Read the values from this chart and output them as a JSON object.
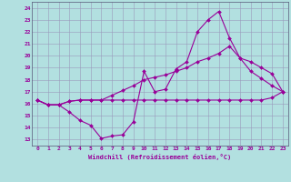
{
  "xlabel": "Windchill (Refroidissement éolien,°C)",
  "background_color": "#b2e0e0",
  "grid_color": "#9999bb",
  "line_color": "#990099",
  "x_ticks": [
    0,
    1,
    2,
    3,
    4,
    5,
    6,
    7,
    8,
    9,
    10,
    11,
    12,
    13,
    14,
    15,
    16,
    17,
    18,
    19,
    20,
    21,
    22,
    23
  ],
  "y_ticks": [
    13,
    14,
    15,
    16,
    17,
    18,
    19,
    20,
    21,
    22,
    23,
    24
  ],
  "ylim": [
    12.5,
    24.5
  ],
  "xlim": [
    -0.5,
    23.5
  ],
  "curve1_x": [
    0,
    1,
    2,
    3,
    4,
    5,
    6,
    7,
    8,
    9,
    10,
    11,
    12,
    13,
    14,
    15,
    16,
    17,
    18,
    19,
    20,
    21,
    22,
    23
  ],
  "curve1_y": [
    16.3,
    15.9,
    15.9,
    15.3,
    14.6,
    14.2,
    13.1,
    13.3,
    13.4,
    14.5,
    18.7,
    17.0,
    17.2,
    18.9,
    19.5,
    22.0,
    23.0,
    23.7,
    21.5,
    19.8,
    18.7,
    18.1,
    17.5,
    17.0
  ],
  "curve2_x": [
    0,
    1,
    2,
    3,
    4,
    5,
    6,
    7,
    8,
    9,
    10,
    11,
    12,
    13,
    14,
    15,
    16,
    17,
    18,
    19,
    20,
    21,
    22,
    23
  ],
  "curve2_y": [
    16.3,
    15.9,
    15.9,
    16.2,
    16.3,
    16.3,
    16.3,
    16.7,
    17.1,
    17.5,
    18.0,
    18.2,
    18.4,
    18.7,
    19.0,
    19.5,
    19.8,
    20.2,
    20.8,
    19.8,
    19.5,
    19.0,
    18.5,
    17.0
  ],
  "curve3_x": [
    0,
    1,
    2,
    3,
    4,
    5,
    6,
    7,
    8,
    9,
    10,
    11,
    12,
    13,
    14,
    15,
    16,
    17,
    18,
    19,
    20,
    21,
    22,
    23
  ],
  "curve3_y": [
    16.3,
    15.9,
    15.9,
    16.2,
    16.3,
    16.3,
    16.3,
    16.3,
    16.3,
    16.3,
    16.3,
    16.3,
    16.3,
    16.3,
    16.3,
    16.3,
    16.3,
    16.3,
    16.3,
    16.3,
    16.3,
    16.3,
    16.5,
    17.0
  ]
}
